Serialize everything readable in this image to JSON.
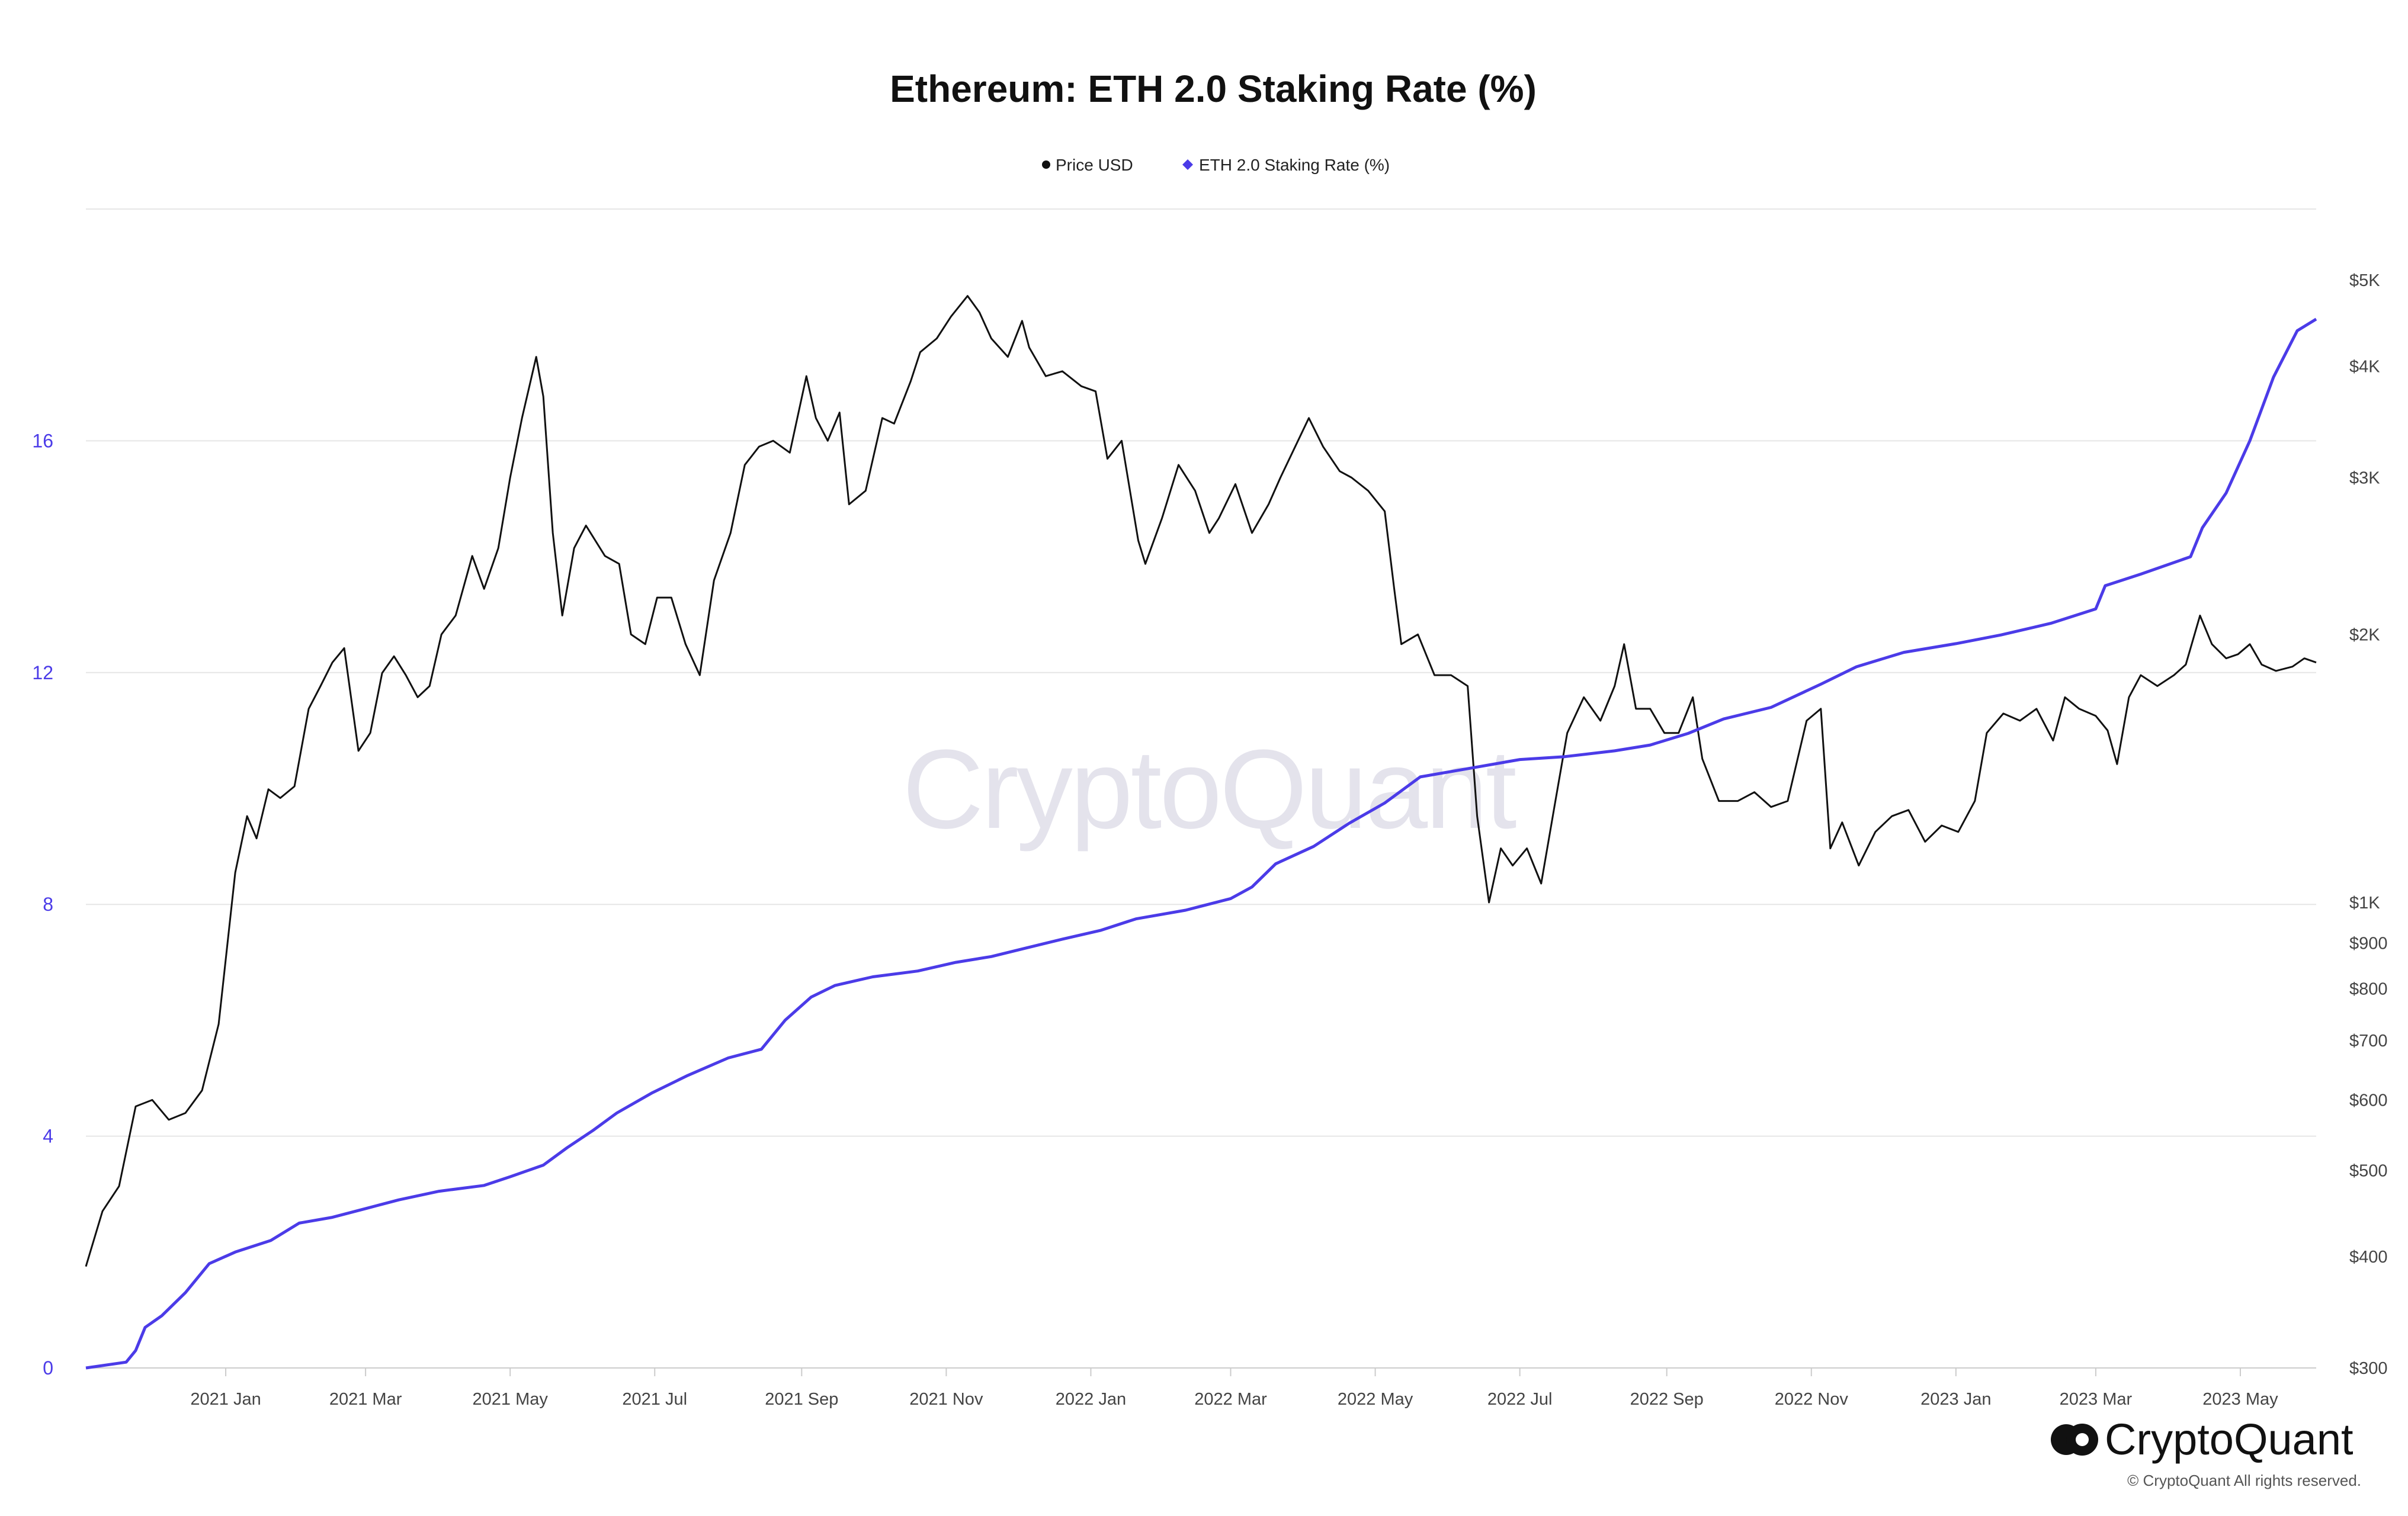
{
  "chart_data": {
    "type": "line",
    "title": "Ethereum: ETH 2.0 Staking Rate (%)",
    "legend_position": "top-center",
    "grid": true,
    "x_ticks": [
      "2021 Jan",
      "2021 Mar",
      "2021 May",
      "2021 Jul",
      "2021 Sep",
      "2021 Nov",
      "2022 Jan",
      "2022 Mar",
      "2022 May",
      "2022 Jul",
      "2022 Sep",
      "2022 Nov",
      "2023 Jan",
      "2023 Mar",
      "2023 May"
    ],
    "xlim": [
      "2020-11-03",
      "2023-06-02"
    ],
    "y_left": {
      "ticks": [
        "0",
        "4",
        "8",
        "12",
        "16"
      ],
      "lim": [
        0,
        20
      ],
      "color": "#4b3be8"
    },
    "y_right": {
      "scale": "log",
      "ticks": [
        "$300",
        "$400",
        "$500",
        "$600",
        "$700",
        "$800",
        "$900",
        "$1K",
        "$2K",
        "$3K",
        "$4K",
        "$5K"
      ],
      "tick_values": [
        300,
        400,
        500,
        600,
        700,
        800,
        900,
        1000,
        2000,
        3000,
        4000,
        5000
      ],
      "lim": [
        300,
        5000
      ]
    },
    "series": [
      {
        "name": "Price USD",
        "axis": "right",
        "color": "#111111",
        "marker": "circle",
        "points": [
          [
            "2020-11-03",
            390
          ],
          [
            "2020-11-10",
            450
          ],
          [
            "2020-11-17",
            480
          ],
          [
            "2020-11-24",
            590
          ],
          [
            "2020-12-01",
            600
          ],
          [
            "2020-12-08",
            570
          ],
          [
            "2020-12-15",
            580
          ],
          [
            "2020-12-22",
            615
          ],
          [
            "2020-12-29",
            730
          ],
          [
            "2021-01-05",
            1080
          ],
          [
            "2021-01-10",
            1250
          ],
          [
            "2021-01-14",
            1180
          ],
          [
            "2021-01-19",
            1340
          ],
          [
            "2021-01-24",
            1310
          ],
          [
            "2021-01-30",
            1350
          ],
          [
            "2021-02-05",
            1650
          ],
          [
            "2021-02-10",
            1750
          ],
          [
            "2021-02-15",
            1860
          ],
          [
            "2021-02-20",
            1930
          ],
          [
            "2021-02-26",
            1480
          ],
          [
            "2021-03-03",
            1550
          ],
          [
            "2021-03-08",
            1810
          ],
          [
            "2021-03-13",
            1890
          ],
          [
            "2021-03-18",
            1800
          ],
          [
            "2021-03-23",
            1700
          ],
          [
            "2021-03-28",
            1750
          ],
          [
            "2021-04-02",
            2000
          ],
          [
            "2021-04-08",
            2100
          ],
          [
            "2021-04-15",
            2450
          ],
          [
            "2021-04-20",
            2250
          ],
          [
            "2021-04-26",
            2500
          ],
          [
            "2021-05-01",
            3000
          ],
          [
            "2021-05-06",
            3500
          ],
          [
            "2021-05-12",
            4100
          ],
          [
            "2021-05-15",
            3700
          ],
          [
            "2021-05-19",
            2600
          ],
          [
            "2021-05-23",
            2100
          ],
          [
            "2021-05-28",
            2500
          ],
          [
            "2021-06-02",
            2650
          ],
          [
            "2021-06-10",
            2450
          ],
          [
            "2021-06-16",
            2400
          ],
          [
            "2021-06-21",
            2000
          ],
          [
            "2021-06-27",
            1950
          ],
          [
            "2021-07-02",
            2200
          ],
          [
            "2021-07-08",
            2200
          ],
          [
            "2021-07-14",
            1950
          ],
          [
            "2021-07-20",
            1800
          ],
          [
            "2021-07-26",
            2300
          ],
          [
            "2021-08-02",
            2600
          ],
          [
            "2021-08-08",
            3100
          ],
          [
            "2021-08-14",
            3250
          ],
          [
            "2021-08-20",
            3300
          ],
          [
            "2021-08-27",
            3200
          ],
          [
            "2021-09-03",
            3900
          ],
          [
            "2021-09-07",
            3500
          ],
          [
            "2021-09-12",
            3300
          ],
          [
            "2021-09-17",
            3550
          ],
          [
            "2021-09-21",
            2800
          ],
          [
            "2021-09-28",
            2900
          ],
          [
            "2021-10-05",
            3500
          ],
          [
            "2021-10-10",
            3450
          ],
          [
            "2021-10-17",
            3850
          ],
          [
            "2021-10-21",
            4150
          ],
          [
            "2021-10-28",
            4300
          ],
          [
            "2021-11-03",
            4550
          ],
          [
            "2021-11-10",
            4800
          ],
          [
            "2021-11-15",
            4600
          ],
          [
            "2021-11-20",
            4300
          ],
          [
            "2021-11-27",
            4100
          ],
          [
            "2021-12-03",
            4500
          ],
          [
            "2021-12-06",
            4200
          ],
          [
            "2021-12-13",
            3900
          ],
          [
            "2021-12-20",
            3950
          ],
          [
            "2021-12-28",
            3800
          ],
          [
            "2022-01-03",
            3750
          ],
          [
            "2022-01-08",
            3150
          ],
          [
            "2022-01-14",
            3300
          ],
          [
            "2022-01-21",
            2550
          ],
          [
            "2022-01-24",
            2400
          ],
          [
            "2022-01-31",
            2700
          ],
          [
            "2022-02-07",
            3100
          ],
          [
            "2022-02-14",
            2900
          ],
          [
            "2022-02-20",
            2600
          ],
          [
            "2022-02-24",
            2700
          ],
          [
            "2022-03-03",
            2950
          ],
          [
            "2022-03-10",
            2600
          ],
          [
            "2022-03-17",
            2800
          ],
          [
            "2022-03-22",
            3000
          ],
          [
            "2022-04-03",
            3500
          ],
          [
            "2022-04-09",
            3250
          ],
          [
            "2022-04-16",
            3050
          ],
          [
            "2022-04-21",
            3000
          ],
          [
            "2022-04-28",
            2900
          ],
          [
            "2022-05-05",
            2750
          ],
          [
            "2022-05-09",
            2250
          ],
          [
            "2022-05-12",
            1950
          ],
          [
            "2022-05-19",
            2000
          ],
          [
            "2022-05-26",
            1800
          ],
          [
            "2022-06-02",
            1800
          ],
          [
            "2022-06-09",
            1750
          ],
          [
            "2022-06-13",
            1250
          ],
          [
            "2022-06-18",
            1000
          ],
          [
            "2022-06-23",
            1150
          ],
          [
            "2022-06-28",
            1100
          ],
          [
            "2022-07-04",
            1150
          ],
          [
            "2022-07-10",
            1050
          ],
          [
            "2022-07-16",
            1300
          ],
          [
            "2022-07-21",
            1550
          ],
          [
            "2022-07-28",
            1700
          ],
          [
            "2022-08-04",
            1600
          ],
          [
            "2022-08-10",
            1750
          ],
          [
            "2022-08-14",
            1950
          ],
          [
            "2022-08-19",
            1650
          ],
          [
            "2022-08-25",
            1650
          ],
          [
            "2022-08-31",
            1550
          ],
          [
            "2022-09-06",
            1550
          ],
          [
            "2022-09-12",
            1700
          ],
          [
            "2022-09-16",
            1450
          ],
          [
            "2022-09-23",
            1300
          ],
          [
            "2022-10-01",
            1300
          ],
          [
            "2022-10-08",
            1330
          ],
          [
            "2022-10-15",
            1280
          ],
          [
            "2022-10-22",
            1300
          ],
          [
            "2022-10-30",
            1600
          ],
          [
            "2022-11-05",
            1650
          ],
          [
            "2022-11-09",
            1150
          ],
          [
            "2022-11-14",
            1230
          ],
          [
            "2022-11-21",
            1100
          ],
          [
            "2022-11-28",
            1200
          ],
          [
            "2022-12-05",
            1250
          ],
          [
            "2022-12-12",
            1270
          ],
          [
            "2022-12-19",
            1170
          ],
          [
            "2022-12-26",
            1220
          ],
          [
            "2023-01-02",
            1200
          ],
          [
            "2023-01-09",
            1300
          ],
          [
            "2023-01-14",
            1550
          ],
          [
            "2023-01-21",
            1630
          ],
          [
            "2023-01-28",
            1600
          ],
          [
            "2023-02-04",
            1650
          ],
          [
            "2023-02-11",
            1520
          ],
          [
            "2023-02-16",
            1700
          ],
          [
            "2023-02-22",
            1650
          ],
          [
            "2023-03-01",
            1620
          ],
          [
            "2023-03-06",
            1560
          ],
          [
            "2023-03-10",
            1430
          ],
          [
            "2023-03-15",
            1700
          ],
          [
            "2023-03-20",
            1800
          ],
          [
            "2023-03-27",
            1750
          ],
          [
            "2023-04-03",
            1800
          ],
          [
            "2023-04-08",
            1850
          ],
          [
            "2023-04-14",
            2100
          ],
          [
            "2023-04-19",
            1950
          ],
          [
            "2023-04-25",
            1880
          ],
          [
            "2023-04-30",
            1900
          ],
          [
            "2023-05-05",
            1950
          ],
          [
            "2023-05-10",
            1850
          ],
          [
            "2023-05-16",
            1820
          ],
          [
            "2023-05-23",
            1840
          ],
          [
            "2023-05-28",
            1880
          ],
          [
            "2023-06-02",
            1860
          ]
        ]
      },
      {
        "name": "ETH 2.0 Staking Rate (%)",
        "axis": "left",
        "color": "#4b3be8",
        "marker": "diamond",
        "points": [
          [
            "2020-11-03",
            0.0
          ],
          [
            "2020-11-20",
            0.1
          ],
          [
            "2020-11-24",
            0.3
          ],
          [
            "2020-11-28",
            0.7
          ],
          [
            "2020-12-05",
            0.9
          ],
          [
            "2020-12-15",
            1.3
          ],
          [
            "2020-12-25",
            1.8
          ],
          [
            "2021-01-05",
            2.0
          ],
          [
            "2021-01-20",
            2.2
          ],
          [
            "2021-02-01",
            2.5
          ],
          [
            "2021-02-15",
            2.6
          ],
          [
            "2021-03-01",
            2.75
          ],
          [
            "2021-03-15",
            2.9
          ],
          [
            "2021-04-01",
            3.05
          ],
          [
            "2021-04-20",
            3.15
          ],
          [
            "2021-05-01",
            3.3
          ],
          [
            "2021-05-15",
            3.5
          ],
          [
            "2021-05-25",
            3.8
          ],
          [
            "2021-06-05",
            4.1
          ],
          [
            "2021-06-15",
            4.4
          ],
          [
            "2021-06-30",
            4.75
          ],
          [
            "2021-07-15",
            5.05
          ],
          [
            "2021-08-01",
            5.35
          ],
          [
            "2021-08-15",
            5.5
          ],
          [
            "2021-08-25",
            6.0
          ],
          [
            "2021-09-05",
            6.4
          ],
          [
            "2021-09-15",
            6.6
          ],
          [
            "2021-10-01",
            6.75
          ],
          [
            "2021-10-20",
            6.85
          ],
          [
            "2021-11-05",
            7.0
          ],
          [
            "2021-11-20",
            7.1
          ],
          [
            "2021-12-05",
            7.25
          ],
          [
            "2021-12-20",
            7.4
          ],
          [
            "2022-01-05",
            7.55
          ],
          [
            "2022-01-20",
            7.75
          ],
          [
            "2022-02-10",
            7.9
          ],
          [
            "2022-03-01",
            8.1
          ],
          [
            "2022-03-10",
            8.3
          ],
          [
            "2022-03-20",
            8.7
          ],
          [
            "2022-04-05",
            9.0
          ],
          [
            "2022-04-20",
            9.4
          ],
          [
            "2022-05-05",
            9.75
          ],
          [
            "2022-05-20",
            10.2
          ],
          [
            "2022-06-10",
            10.35
          ],
          [
            "2022-07-01",
            10.5
          ],
          [
            "2022-07-20",
            10.55
          ],
          [
            "2022-08-10",
            10.65
          ],
          [
            "2022-08-25",
            10.75
          ],
          [
            "2022-09-10",
            10.95
          ],
          [
            "2022-09-25",
            11.2
          ],
          [
            "2022-10-15",
            11.4
          ],
          [
            "2022-11-05",
            11.8
          ],
          [
            "2022-11-20",
            12.1
          ],
          [
            "2022-12-10",
            12.35
          ],
          [
            "2023-01-01",
            12.5
          ],
          [
            "2023-01-20",
            12.65
          ],
          [
            "2023-02-10",
            12.85
          ],
          [
            "2023-03-01",
            13.1
          ],
          [
            "2023-03-05",
            13.5
          ],
          [
            "2023-03-20",
            13.7
          ],
          [
            "2023-04-10",
            14.0
          ],
          [
            "2023-04-15",
            14.5
          ],
          [
            "2023-04-25",
            15.1
          ],
          [
            "2023-05-05",
            16.0
          ],
          [
            "2023-05-15",
            17.1
          ],
          [
            "2023-05-25",
            17.9
          ],
          [
            "2023-06-02",
            18.1
          ]
        ]
      }
    ]
  },
  "watermark": "CryptoQuant",
  "brand": "CryptoQuant",
  "copyright": "© CryptoQuant All rights reserved."
}
